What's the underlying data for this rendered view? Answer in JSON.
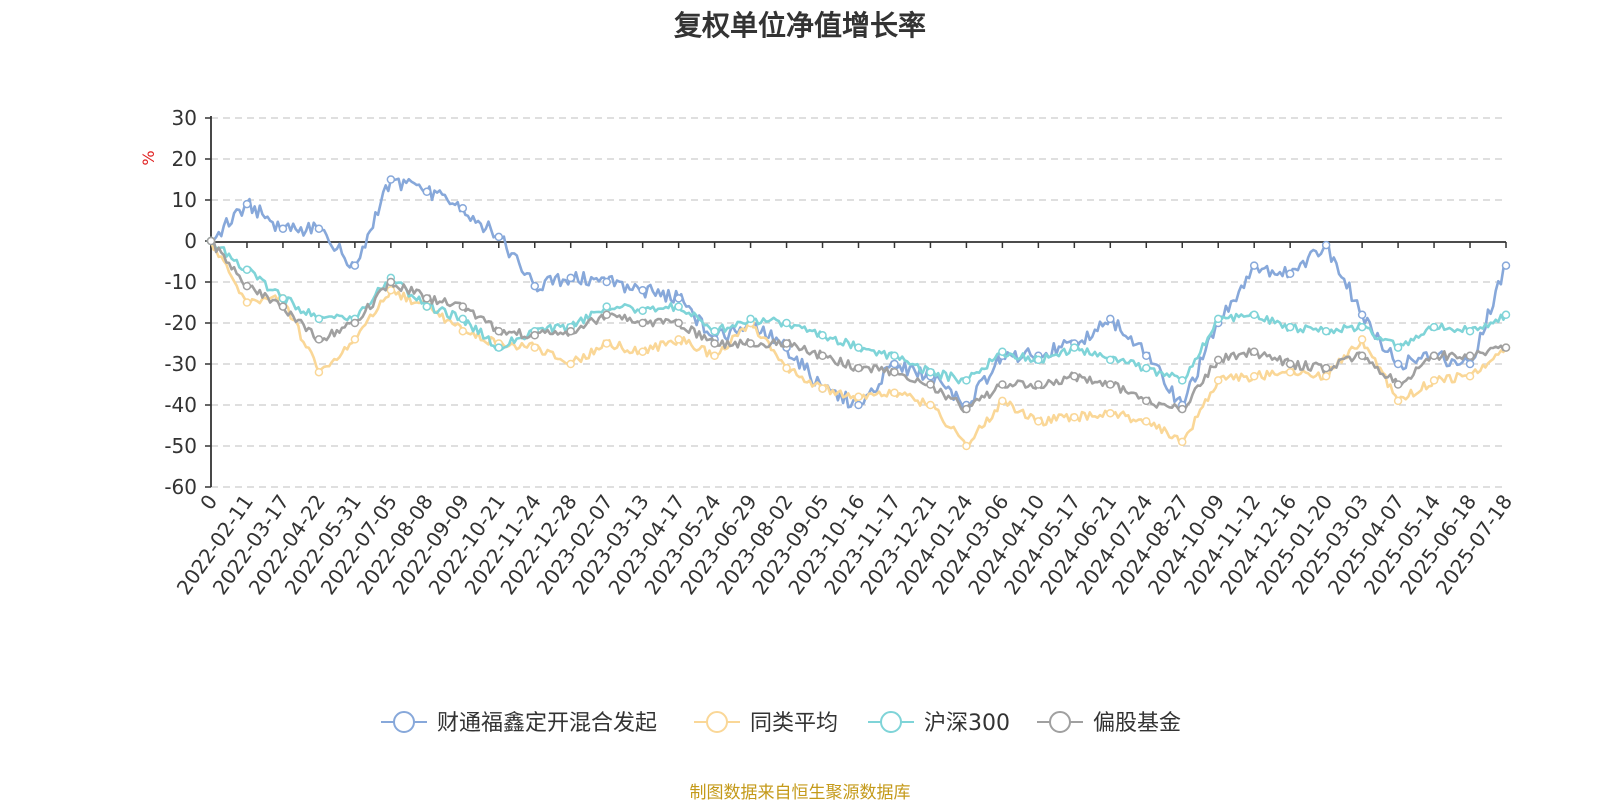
{
  "chart_data": {
    "type": "line",
    "title": "复权单位净值增长率",
    "ylabel": "%",
    "ylim": [
      -60,
      30
    ],
    "yticks": [
      "30",
      "20",
      "10",
      "0",
      "-10",
      "-20",
      "-30",
      "-40",
      "-50",
      "-60"
    ],
    "grid": true,
    "legend_position": "bottom",
    "x": [
      "0",
      "2022-02-11",
      "2022-03-17",
      "2022-04-22",
      "2022-05-31",
      "2022-07-05",
      "2022-08-08",
      "2022-09-09",
      "2022-10-21",
      "2022-11-24",
      "2022-12-28",
      "2023-02-07",
      "2023-03-13",
      "2023-04-17",
      "2023-05-24",
      "2023-06-29",
      "2023-08-02",
      "2023-09-05",
      "2023-10-16",
      "2023-11-17",
      "2023-12-21",
      "2024-01-24",
      "2024-03-06",
      "2024-04-10",
      "2024-05-17",
      "2024-06-21",
      "2024-07-24",
      "2024-08-27",
      "2024-10-09",
      "2024-11-12",
      "2024-12-16",
      "2025-01-20",
      "2025-03-03",
      "2025-04-07",
      "2025-05-14",
      "2025-06-18",
      "2025-07-18"
    ],
    "series": [
      {
        "name": "财通福鑫定开混合发起",
        "color": "#87a8da",
        "values": [
          0,
          9,
          3,
          3,
          -6,
          15,
          12,
          8,
          1,
          -11,
          -9,
          -10,
          -12,
          -14,
          -24,
          -20,
          -26,
          -36,
          -40,
          -30,
          -33,
          -40,
          -28,
          -28,
          -25,
          -19,
          -28,
          -40,
          -20,
          -6,
          -8,
          -1,
          -18,
          -30,
          -28,
          -30,
          -6
        ]
      },
      {
        "name": "同类平均",
        "color": "#fad797",
        "values": [
          0,
          -15,
          -14,
          -32,
          -24,
          -12,
          -16,
          -22,
          -25,
          -26,
          -30,
          -25,
          -27,
          -24,
          -28,
          -20,
          -31,
          -36,
          -38,
          -37,
          -40,
          -50,
          -39,
          -44,
          -43,
          -42,
          -44,
          -49,
          -34,
          -33,
          -32,
          -33,
          -24,
          -39,
          -34,
          -33,
          -26
        ]
      },
      {
        "name": "沪深300",
        "color": "#7fd4d8",
        "values": [
          0,
          -7,
          -14,
          -19,
          -19,
          -9,
          -16,
          -19,
          -26,
          -22,
          -21,
          -16,
          -17,
          -16,
          -22,
          -19,
          -20,
          -23,
          -26,
          -28,
          -32,
          -34,
          -27,
          -29,
          -26,
          -29,
          -31,
          -34,
          -19,
          -18,
          -21,
          -22,
          -21,
          -26,
          -21,
          -22,
          -18
        ]
      },
      {
        "name": "偏股基金",
        "color": "#a0a0a0",
        "values": [
          0,
          -11,
          -16,
          -24,
          -20,
          -10,
          -14,
          -16,
          -22,
          -23,
          -22,
          -18,
          -20,
          -20,
          -25,
          -25,
          -25,
          -28,
          -31,
          -32,
          -35,
          -41,
          -35,
          -35,
          -33,
          -35,
          -39,
          -41,
          -29,
          -27,
          -30,
          -31,
          -28,
          -35,
          -28,
          -28,
          -26
        ]
      }
    ]
  },
  "footer": {
    "source": "制图数据来自恒生聚源数据库"
  }
}
